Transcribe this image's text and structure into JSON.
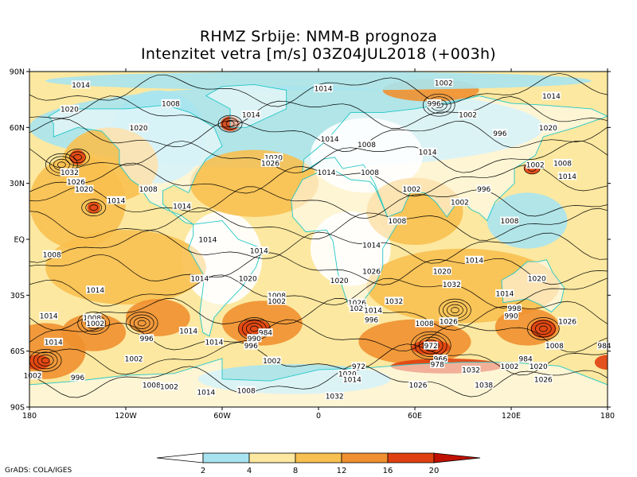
{
  "title": {
    "line1": "RHMZ Srbije: NMM-B prognoza",
    "line2": "Intenzitet vetra [m/s] 03Z04JUL2018 (+003h)"
  },
  "axes": {
    "lat_ticks": [
      "90N",
      "60N",
      "30N",
      "EQ",
      "30S",
      "60S",
      "90S"
    ],
    "lon_ticks": [
      "180",
      "120W",
      "60W",
      "0",
      "60E",
      "120E",
      "180"
    ]
  },
  "colorbar": {
    "labels": [
      "2",
      "4",
      "8",
      "12",
      "16",
      "20"
    ],
    "colors": [
      "#ffffff",
      "#a8e4f0",
      "#fce8a0",
      "#f8c050",
      "#f09030",
      "#e04010",
      "#c01000"
    ]
  },
  "pressure_labels": [
    {
      "text": "1014",
      "lon": -148,
      "lat": 83
    },
    {
      "text": "1014",
      "lon": 3,
      "lat": 81
    },
    {
      "text": "1002",
      "lon": 78,
      "lat": 84
    },
    {
      "text": "1014",
      "lon": 145,
      "lat": 77
    },
    {
      "text": "1020",
      "lon": -155,
      "lat": 70
    },
    {
      "text": "1008",
      "lon": -92,
      "lat": 73
    },
    {
      "text": "996",
      "lon": 72,
      "lat": 73
    },
    {
      "text": "1014",
      "lon": -42,
      "lat": 67
    },
    {
      "text": "1002",
      "lon": 93,
      "lat": 67
    },
    {
      "text": "1020",
      "lon": -112,
      "lat": 60
    },
    {
      "text": "996",
      "lon": 113,
      "lat": 57
    },
    {
      "text": "1020",
      "lon": 143,
      "lat": 60
    },
    {
      "text": "1014",
      "lon": 7,
      "lat": 54
    },
    {
      "text": "1008",
      "lon": 30,
      "lat": 51
    },
    {
      "text": "1014",
      "lon": 68,
      "lat": 47
    },
    {
      "text": "1020",
      "lon": -28,
      "lat": 44
    },
    {
      "text": "1026",
      "lon": -30,
      "lat": 41
    },
    {
      "text": "1032",
      "lon": -155,
      "lat": 36
    },
    {
      "text": "1002",
      "lon": 135,
      "lat": 40
    },
    {
      "text": "1008",
      "lon": 152,
      "lat": 41
    },
    {
      "text": "1026",
      "lon": -151,
      "lat": 31
    },
    {
      "text": "1014",
      "lon": 5,
      "lat": 36
    },
    {
      "text": "1008",
      "lon": 32,
      "lat": 36
    },
    {
      "text": "1014",
      "lon": 155,
      "lat": 34
    },
    {
      "text": "1020",
      "lon": -146,
      "lat": 27
    },
    {
      "text": "1008",
      "lon": -106,
      "lat": 27
    },
    {
      "text": "1002",
      "lon": 58,
      "lat": 27
    },
    {
      "text": "996",
      "lon": 103,
      "lat": 27
    },
    {
      "text": "1014",
      "lon": -126,
      "lat": 21
    },
    {
      "text": "1002",
      "lon": 88,
      "lat": 20
    },
    {
      "text": "1014",
      "lon": -85,
      "lat": 18
    },
    {
      "text": "1008",
      "lon": 49,
      "lat": 10
    },
    {
      "text": "1008",
      "lon": 119,
      "lat": 10
    },
    {
      "text": "1014",
      "lon": -69,
      "lat": 0
    },
    {
      "text": "1014",
      "lon": 33,
      "lat": -3
    },
    {
      "text": "1008",
      "lon": -166,
      "lat": -8
    },
    {
      "text": "1014",
      "lon": -37,
      "lat": -6
    },
    {
      "text": "1014",
      "lon": 97,
      "lat": -11
    },
    {
      "text": "1020",
      "lon": 77,
      "lat": -17
    },
    {
      "text": "1026",
      "lon": 33,
      "lat": -17
    },
    {
      "text": "1014",
      "lon": -74,
      "lat": -21
    },
    {
      "text": "1020",
      "lon": -44,
      "lat": -21
    },
    {
      "text": "1020",
      "lon": 13,
      "lat": -22
    },
    {
      "text": "1020",
      "lon": 136,
      "lat": -21
    },
    {
      "text": "1032",
      "lon": 83,
      "lat": -24
    },
    {
      "text": "1014",
      "lon": -139,
      "lat": -27
    },
    {
      "text": "1014",
      "lon": 116,
      "lat": -29
    },
    {
      "text": "1008",
      "lon": -26,
      "lat": -30
    },
    {
      "text": "1002",
      "lon": -26,
      "lat": -33
    },
    {
      "text": "1032",
      "lon": 47,
      "lat": -33
    },
    {
      "text": "1026",
      "lon": 24,
      "lat": -34
    },
    {
      "text": "1020",
      "lon": 25,
      "lat": -37
    },
    {
      "text": "998",
      "lon": 122,
      "lat": -37
    },
    {
      "text": "1014",
      "lon": -168,
      "lat": -41
    },
    {
      "text": "1008",
      "lon": -141,
      "lat": -42
    },
    {
      "text": "1014",
      "lon": 34,
      "lat": -38
    },
    {
      "text": "996",
      "lon": 33,
      "lat": -43
    },
    {
      "text": "990",
      "lon": 120,
      "lat": -41
    },
    {
      "text": "1002",
      "lon": -139,
      "lat": -45
    },
    {
      "text": "1008",
      "lon": 66,
      "lat": -45
    },
    {
      "text": "1026",
      "lon": 81,
      "lat": -44
    },
    {
      "text": "1026",
      "lon": 155,
      "lat": -44
    },
    {
      "text": "1014",
      "lon": -81,
      "lat": -49
    },
    {
      "text": "984",
      "lon": -33,
      "lat": -50
    },
    {
      "text": "996",
      "lon": -107,
      "lat": -53
    },
    {
      "text": "990",
      "lon": -40,
      "lat": -53
    },
    {
      "text": "1014",
      "lon": -165,
      "lat": -55
    },
    {
      "text": "1014",
      "lon": -65,
      "lat": -55
    },
    {
      "text": "996",
      "lon": -42,
      "lat": -57
    },
    {
      "text": "972",
      "lon": 70,
      "lat": -57
    },
    {
      "text": "1008",
      "lon": 147,
      "lat": -57
    },
    {
      "text": "984",
      "lon": 178,
      "lat": -57
    },
    {
      "text": "1002",
      "lon": -115,
      "lat": -64
    },
    {
      "text": "1002",
      "lon": -29,
      "lat": -65
    },
    {
      "text": "966",
      "lon": 76,
      "lat": -64
    },
    {
      "text": "984",
      "lon": 129,
      "lat": -64
    },
    {
      "text": "978",
      "lon": 74,
      "lat": -67
    },
    {
      "text": "1002",
      "lon": 119,
      "lat": -68
    },
    {
      "text": "1020",
      "lon": 137,
      "lat": -68
    },
    {
      "text": "972",
      "lon": 25,
      "lat": -68
    },
    {
      "text": "1032",
      "lon": 95,
      "lat": -70
    },
    {
      "text": "1020",
      "lon": 18,
      "lat": -72
    },
    {
      "text": "996",
      "lon": -150,
      "lat": -74
    },
    {
      "text": "1002",
      "lon": -178,
      "lat": -73
    },
    {
      "text": "1008",
      "lon": -104,
      "lat": -78
    },
    {
      "text": "1002",
      "lon": -93,
      "lat": -79
    },
    {
      "text": "1014",
      "lon": 21,
      "lat": -75
    },
    {
      "text": "1026",
      "lon": 140,
      "lat": -75
    },
    {
      "text": "1026",
      "lon": 62,
      "lat": -78
    },
    {
      "text": "1038",
      "lon": 103,
      "lat": -78
    },
    {
      "text": "1014",
      "lon": -70,
      "lat": -82
    },
    {
      "text": "1008",
      "lon": -45,
      "lat": -81
    },
    {
      "text": "1032",
      "lon": 10,
      "lat": -84
    }
  ],
  "credit": "GrADS: COLA/IGES"
}
